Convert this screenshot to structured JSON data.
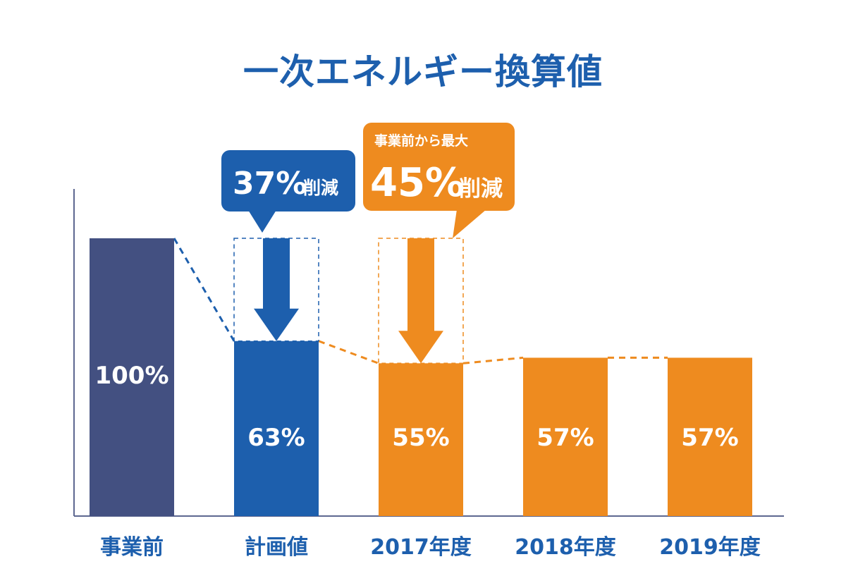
{
  "chart_data": {
    "type": "bar",
    "title": "一次エネルギー換算値",
    "categories": [
      "事業前",
      "計画値",
      "2017年度",
      "2018年度",
      "2019年度"
    ],
    "values": [
      100,
      63,
      55,
      57,
      57
    ],
    "value_labels": [
      "100%",
      "63%",
      "55%",
      "57%",
      "57%"
    ],
    "ylim": [
      0,
      100
    ],
    "bar_colors": [
      "#435081",
      "#1d5fad",
      "#ee8b1f",
      "#ee8b1f",
      "#ee8b1f"
    ],
    "annotations": [
      {
        "target_category": "計画値",
        "big": "37%",
        "suffix": "削減",
        "color": "#1d5fad"
      },
      {
        "target_category": "2017年度",
        "top": "事業前から最大",
        "big": "45%",
        "suffix": "削減",
        "color": "#ee8b1f"
      }
    ]
  }
}
